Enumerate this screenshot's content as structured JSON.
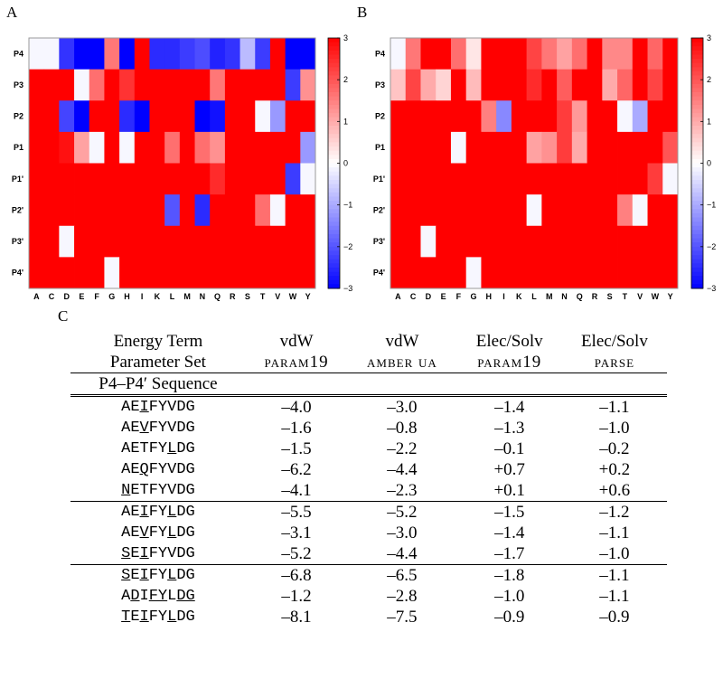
{
  "panels": {
    "a": "A",
    "b": "B",
    "c": "C"
  },
  "colors": {
    "blue": "#0000ff",
    "white": "#ffffff",
    "red": "#ff0000"
  },
  "chart_data": [
    {
      "type": "heatmap",
      "panel": "A",
      "x": [
        "A",
        "C",
        "D",
        "E",
        "F",
        "G",
        "H",
        "I",
        "K",
        "L",
        "M",
        "N",
        "Q",
        "R",
        "S",
        "T",
        "V",
        "W",
        "Y"
      ],
      "y": [
        "P4",
        "P3",
        "P2",
        "P1",
        "P1'",
        "P2'",
        "P3'",
        "P4'"
      ],
      "colorbar": {
        "min": -3,
        "max": 3,
        "ticks": [
          3,
          2,
          1,
          0,
          -1,
          -2,
          -3
        ]
      },
      "values": [
        [
          -0.1,
          -0.1,
          -2.4,
          -3,
          -3,
          1.6,
          -3,
          3,
          -2.5,
          -2.5,
          -2.3,
          -2.1,
          -2.6,
          -2.4,
          -0.8,
          -2.3,
          3,
          -3,
          -3
        ],
        [
          3,
          3,
          3,
          -0.1,
          1.7,
          3,
          2.4,
          3,
          3,
          3,
          3,
          3,
          1.6,
          3,
          3,
          3,
          3,
          -2.3,
          1.3
        ],
        [
          3,
          3,
          -2.2,
          -3,
          3,
          3,
          -2.5,
          -3,
          3,
          3,
          3,
          -3,
          -2.8,
          3,
          3,
          -0.1,
          -1.2,
          3,
          3
        ],
        [
          3,
          3,
          2.8,
          1.1,
          -0.1,
          3,
          -0.1,
          3,
          3,
          1.7,
          3,
          1.7,
          1.3,
          3,
          3,
          3,
          3,
          3,
          -1.2
        ],
        [
          3,
          3,
          3,
          3,
          3,
          3,
          3,
          3,
          3,
          3,
          3,
          3,
          2.5,
          3,
          3,
          3,
          3,
          -2.3,
          -0.1
        ],
        [
          3,
          3,
          3,
          3,
          3,
          3,
          3,
          3,
          3,
          -2.0,
          3,
          -2.5,
          3,
          3,
          3,
          1.7,
          -0.1,
          3,
          3
        ],
        [
          3,
          3,
          -0.1,
          3,
          3,
          3,
          3,
          3,
          3,
          3,
          3,
          3,
          3,
          3,
          3,
          3,
          3,
          3,
          3
        ],
        [
          3,
          3,
          3,
          3,
          3,
          -0.1,
          3,
          3,
          3,
          3,
          3,
          3,
          3,
          3,
          3,
          3,
          3,
          3,
          3
        ]
      ]
    },
    {
      "type": "heatmap",
      "panel": "B",
      "x": [
        "A",
        "C",
        "D",
        "E",
        "F",
        "G",
        "H",
        "I",
        "K",
        "L",
        "M",
        "N",
        "Q",
        "R",
        "S",
        "T",
        "V",
        "W",
        "Y"
      ],
      "y": [
        "P4",
        "P3",
        "P2",
        "P1",
        "P1'",
        "P2'",
        "P3'",
        "P4'"
      ],
      "colorbar": {
        "min": -3,
        "max": 3,
        "ticks": [
          3,
          2,
          1,
          0,
          -1,
          -2,
          -3
        ]
      },
      "values": [
        [
          -0.1,
          1.6,
          3,
          3,
          1.7,
          0.3,
          3,
          3,
          3,
          2.2,
          1.6,
          1.1,
          1.7,
          3,
          1.4,
          1.4,
          3,
          1.8,
          3
        ],
        [
          0.7,
          2.2,
          1.0,
          0.5,
          3,
          0.8,
          3,
          3,
          3,
          2.5,
          3,
          1.9,
          3,
          3,
          1.0,
          1.8,
          3,
          2.2,
          3
        ],
        [
          3,
          3,
          3,
          3,
          3,
          3,
          1.5,
          -1.4,
          3,
          3,
          3,
          2.3,
          1.2,
          3,
          3,
          -0.1,
          -1.0,
          3,
          3
        ],
        [
          3,
          3,
          3,
          3,
          -0.1,
          3,
          3,
          3,
          3,
          1.1,
          1.3,
          2.3,
          1.0,
          3,
          3,
          3,
          3,
          3,
          2.0
        ],
        [
          3,
          3,
          3,
          3,
          3,
          3,
          3,
          3,
          3,
          3,
          3,
          3,
          3,
          3,
          3,
          3,
          3,
          2.3,
          -0.1
        ],
        [
          3,
          3,
          3,
          3,
          3,
          3,
          3,
          3,
          3,
          -0.1,
          3,
          3,
          3,
          3,
          3,
          1.5,
          -0.1,
          3,
          3
        ],
        [
          3,
          3,
          -0.1,
          3,
          3,
          3,
          3,
          3,
          3,
          3,
          3,
          3,
          3,
          3,
          3,
          3,
          3,
          3,
          3
        ],
        [
          3,
          3,
          3,
          3,
          3,
          -0.1,
          3,
          3,
          3,
          3,
          3,
          3,
          3,
          3,
          3,
          3,
          3,
          3,
          3
        ]
      ]
    },
    {
      "type": "table",
      "panel": "C",
      "header_row1": [
        "Energy Term",
        "vdW",
        "vdW",
        "Elec/Solv",
        "Elec/Solv"
      ],
      "header_row2": [
        "Parameter Set",
        "param19",
        "amber ua",
        "param19",
        "parse"
      ],
      "header_row3": "P4–P4′ Sequence",
      "groups": [
        [
          {
            "seq": [
              "AE",
              "I",
              "FYVDG"
            ],
            "values": [
              "–4.0",
              "–3.0",
              "–1.4",
              "–1.1"
            ]
          },
          {
            "seq": [
              "AE",
              "V",
              "FYVDG"
            ],
            "values": [
              "–1.6",
              "–0.8",
              "–1.3",
              "–1.0"
            ]
          },
          {
            "seq": [
              "AETFY",
              "L",
              "DG"
            ],
            "values": [
              "–1.5",
              "–2.2",
              "–0.1",
              "–0.2"
            ]
          },
          {
            "seq": [
              "AE",
              "Q",
              "FYVDG"
            ],
            "values": [
              "–6.2",
              "–4.4",
              "+0.7",
              "+0.2"
            ]
          },
          {
            "seq": [
              "",
              "N",
              "ETFYVDG"
            ],
            "values": [
              "–4.1",
              "–2.3",
              "+0.1",
              "+0.6"
            ]
          }
        ],
        [
          {
            "seq": [
              "AE",
              "I",
              "FY",
              "L",
              "DG"
            ],
            "values": [
              "–5.5",
              "–5.2",
              "–1.5",
              "–1.2"
            ]
          },
          {
            "seq": [
              "AE",
              "V",
              "FY",
              "L",
              "DG"
            ],
            "values": [
              "–3.1",
              "–3.0",
              "–1.4",
              "–1.1"
            ]
          },
          {
            "seq": [
              "",
              "S",
              "E",
              "I",
              "FYVDG"
            ],
            "values": [
              "–5.2",
              "–4.4",
              "–1.7",
              "–1.0"
            ]
          }
        ],
        [
          {
            "seq": [
              "",
              "S",
              "E",
              "I",
              "FY",
              "L",
              "DG"
            ],
            "values": [
              "–6.8",
              "–6.5",
              "–1.8",
              "–1.1"
            ]
          },
          {
            "seq": [
              "A",
              "D",
              "I",
              "FY",
              "L",
              "DG"
            ],
            "values": [
              "–1.2",
              "–2.8",
              "–1.0",
              "–1.1"
            ]
          },
          {
            "seq": [
              "",
              "T",
              "E",
              "I",
              "FY",
              "L",
              "DG"
            ],
            "values": [
              "–8.1",
              "–7.5",
              "–0.9",
              "–0.9"
            ]
          }
        ]
      ]
    }
  ]
}
